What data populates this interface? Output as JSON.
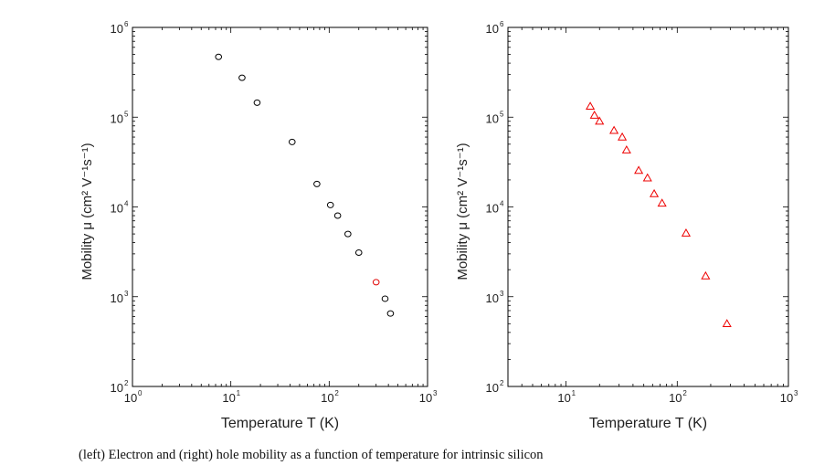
{
  "caption": "(left) Electron and (right) hole mobility as a function of temperature for intrinsic silicon",
  "chart_data": [
    {
      "type": "scatter",
      "xscale": "log",
      "yscale": "log",
      "xlim": [
        1,
        1000
      ],
      "ylim": [
        100,
        1000000
      ],
      "xlabel": "Temperature T (K)",
      "ylabel": "Mobility μ (cm² V⁻¹s⁻¹)",
      "xticks": [
        1,
        10,
        100,
        1000
      ],
      "yticks": [
        100,
        1000,
        10000,
        100000,
        1000000
      ],
      "marker": "circle",
      "color": "#000000",
      "highlight": {
        "x": 300,
        "y": 1450,
        "color": "#e00000"
      },
      "series": [
        {
          "points": [
            [
              7.5,
              470000
            ],
            [
              13,
              275000
            ],
            [
              18.5,
              145000
            ],
            [
              42,
              53000
            ],
            [
              75,
              18000
            ],
            [
              103,
              10500
            ],
            [
              122,
              8000
            ],
            [
              155,
              5000
            ],
            [
              200,
              3100
            ],
            [
              300,
              1450
            ],
            [
              370,
              950
            ],
            [
              420,
              650
            ]
          ]
        }
      ]
    },
    {
      "type": "scatter",
      "xscale": "log",
      "yscale": "log",
      "xlim": [
        3,
        1000
      ],
      "ylim": [
        100,
        1000000
      ],
      "xlabel": "Temperature T (K)",
      "ylabel": "Mobility μ (cm² V⁻¹s⁻¹)",
      "xticks": [
        10,
        100,
        1000
      ],
      "yticks": [
        100,
        1000,
        10000,
        100000,
        1000000
      ],
      "marker": "triangle",
      "color": "#ee0000",
      "series": [
        {
          "points": [
            [
              16.5,
              132000
            ],
            [
              18,
              105000
            ],
            [
              20,
              90000
            ],
            [
              27,
              71000
            ],
            [
              32,
              60000
            ],
            [
              35,
              43000
            ],
            [
              45,
              25500
            ],
            [
              54,
              21000
            ],
            [
              62,
              14000
            ],
            [
              73,
              11000
            ],
            [
              120,
              5100
            ],
            [
              180,
              1700
            ],
            [
              280,
              500
            ]
          ]
        }
      ]
    }
  ]
}
